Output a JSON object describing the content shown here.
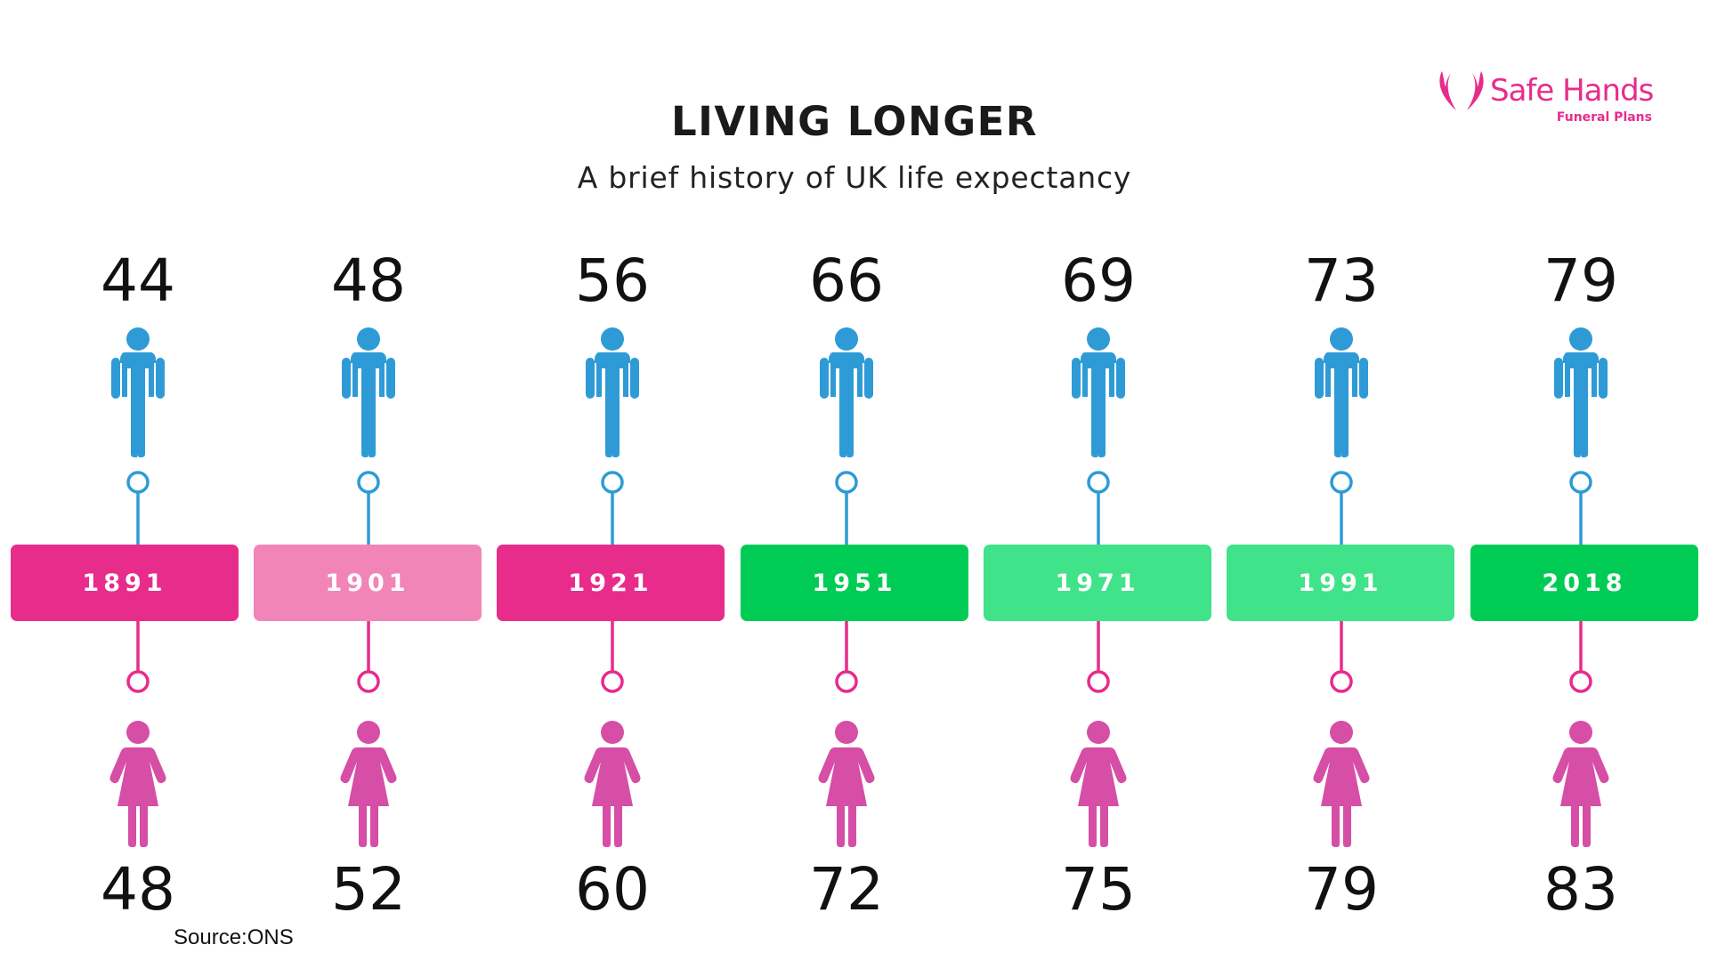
{
  "header": {
    "title": "LIVING LONGER",
    "subtitle": "A brief history of UK life expectancy"
  },
  "logo": {
    "name": "Safe Hands",
    "tagline": "Funeral Plans",
    "icon": "hands-icon",
    "color": "#e72c8c"
  },
  "colors": {
    "male": "#2e9bd6",
    "female": "#d64ea6",
    "female_connector": "#e72c8c"
  },
  "chart_data": {
    "type": "table",
    "categories": [
      "1891",
      "1901",
      "1921",
      "1951",
      "1971",
      "1991",
      "2018"
    ],
    "series": [
      {
        "name": "",
        "icon": "male-figure-icon",
        "values": [
          44,
          48,
          56,
          66,
          69,
          73,
          79
        ]
      },
      {
        "name": "",
        "icon": "female-figure-icon",
        "values": [
          48,
          52,
          60,
          72,
          75,
          79,
          83
        ]
      }
    ],
    "year_box_colors": [
      "#e72c8c",
      "#f285b8",
      "#e72c8c",
      "#00cc55",
      "#40e28a",
      "#40e28a",
      "#00cc55"
    ]
  },
  "source": "Source:ONS"
}
